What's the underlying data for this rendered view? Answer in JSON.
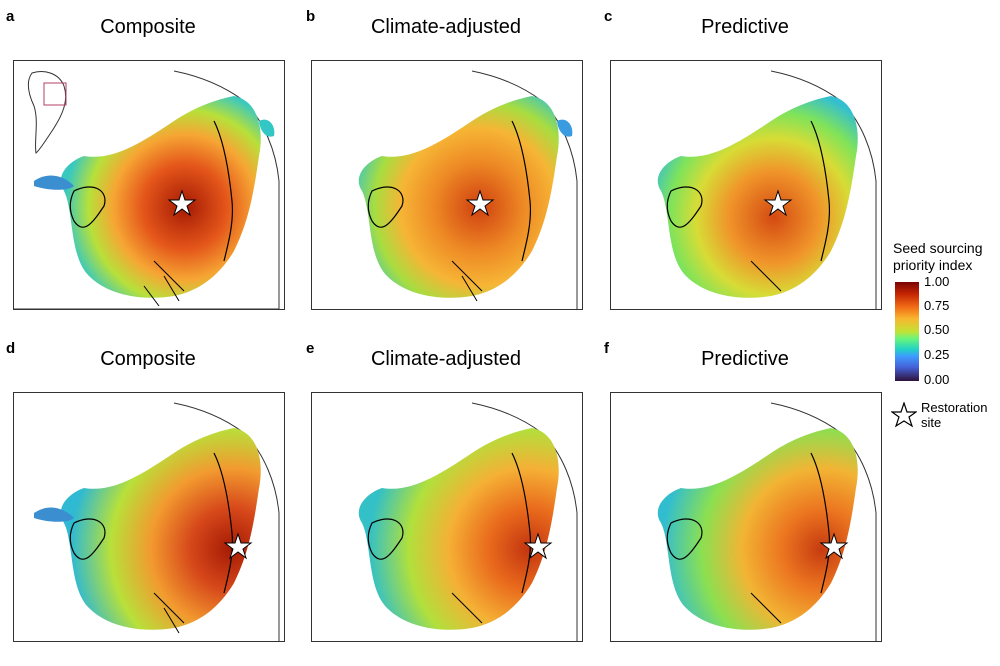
{
  "panels": [
    {
      "letter": "a",
      "title": "Composite"
    },
    {
      "letter": "b",
      "title": "Climate-adjusted"
    },
    {
      "letter": "c",
      "title": "Predictive"
    },
    {
      "letter": "d",
      "title": "Composite"
    },
    {
      "letter": "e",
      "title": "Climate-adjusted"
    },
    {
      "letter": "f",
      "title": "Predictive"
    }
  ],
  "legend": {
    "title_line1": "Seed sourcing",
    "title_line2": "priority index",
    "ticks": [
      "1.00",
      "0.75",
      "0.50",
      "0.25",
      "0.00"
    ],
    "marker_label_line1": "Restoration",
    "marker_label_line2": "site"
  },
  "colors": {
    "high": "#b01e05",
    "mid_high": "#f08320",
    "mid": "#b5e23a",
    "low": "#3aa7e0",
    "outline": "#000000"
  }
}
